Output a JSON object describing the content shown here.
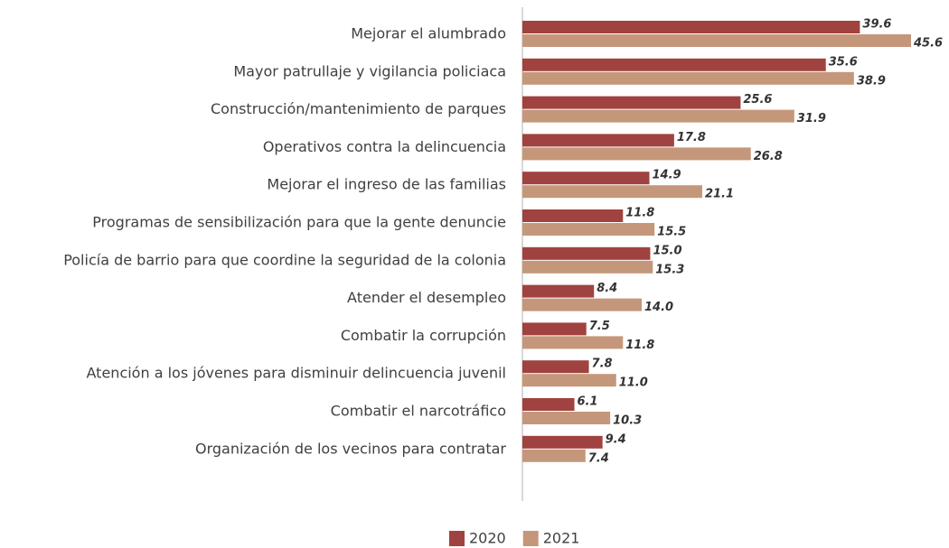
{
  "chart_data": {
    "type": "hbar",
    "categories": [
      "Mejorar el alumbrado",
      "Mayor patrullaje y vigilancia policiaca",
      "Construcción/mantenimiento de parques",
      "Operativos contra la delincuencia",
      "Mejorar el ingreso de las familias",
      "Programas de sensibilización para que la gente denuncie",
      "Policía de barrio para que coordine la seguridad de la colonia",
      "Atender el desempleo",
      "Combatir la corrupción",
      "Atención a los jóvenes para disminuir delincuencia juvenil",
      "Combatir el narcotráfico",
      "Organización de los vecinos para contratar"
    ],
    "series": [
      {
        "name": "2020",
        "color": "#a0423f",
        "values": [
          39.6,
          35.6,
          25.6,
          17.8,
          14.9,
          11.8,
          15.0,
          8.4,
          7.5,
          7.8,
          6.1,
          9.4
        ],
        "value_labels": [
          "39.6",
          "35.6",
          "25.6",
          "17.8",
          "14.9",
          "11.8",
          "15.0",
          "8.4",
          "7.5",
          "7.8",
          "6.1",
          "9.4"
        ]
      },
      {
        "name": "2021",
        "color": "#c4977a",
        "values": [
          45.6,
          38.9,
          31.9,
          26.8,
          21.1,
          15.5,
          15.3,
          14.0,
          11.8,
          11.0,
          10.3,
          7.4
        ],
        "value_labels": [
          "45.6",
          "38.9",
          "31.9",
          "26.8",
          "21.1",
          "15.5",
          "15.3",
          "14.0",
          "11.8",
          "11.0",
          "10.3",
          "7.4"
        ]
      }
    ],
    "legend": "bottom"
  }
}
